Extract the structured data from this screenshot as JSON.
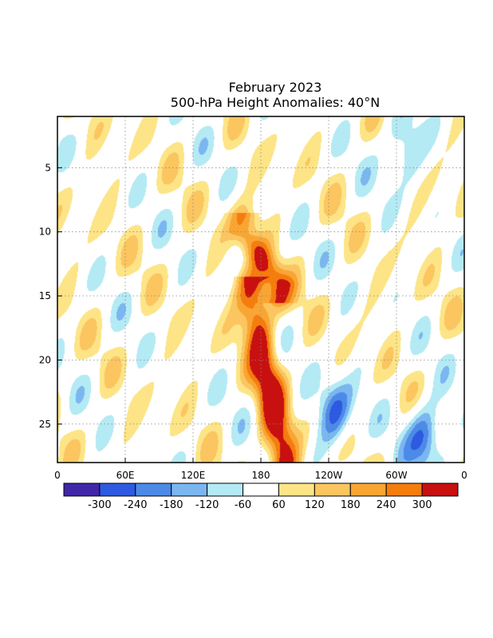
{
  "chart_data": {
    "type": "heatmap",
    "title": "February 2023",
    "subtitle": "500-hPa Height Anomalies: 40°N",
    "xlabel": "",
    "ylabel": "",
    "x_ticks": [
      "0",
      "60E",
      "120E",
      "180",
      "120W",
      "60W",
      "0"
    ],
    "x_tick_lon_east": [
      0,
      60,
      120,
      180,
      240,
      300,
      360
    ],
    "y_ticks": [
      "5",
      "10",
      "15",
      "20",
      "25"
    ],
    "y_tick_values": [
      5,
      10,
      15,
      20,
      25
    ],
    "xlim": [
      0,
      360
    ],
    "ylim": [
      1,
      28
    ],
    "y_axis_direction": "down",
    "grid": true,
    "colorbar": {
      "labels": [
        "-300",
        "-240",
        "-180",
        "-120",
        "-60",
        "60",
        "120",
        "180",
        "240",
        "300"
      ],
      "boundaries": [
        -300,
        -240,
        -180,
        -120,
        -60,
        60,
        120,
        180,
        240,
        300
      ],
      "colors": [
        "#4027a8",
        "#2d5ae0",
        "#4c8ae8",
        "#7ab6f0",
        "#b4eaf4",
        "#ffffff",
        "#fde486",
        "#fbc560",
        "#f9a534",
        "#f47d0e",
        "#c81010"
      ],
      "placement": "bottom"
    },
    "features": [
      {
        "name": "ridge-core",
        "type": "max",
        "value": 330,
        "lon_start": 172,
        "lon_end": 200,
        "day_start": 15,
        "day_end": 28
      },
      {
        "name": "ridge-upper",
        "type": "max",
        "value": 230,
        "lon_start": 165,
        "lon_end": 195,
        "day_start": 10,
        "day_end": 14
      },
      {
        "name": "trough-east-pacific",
        "type": "min",
        "value": -260,
        "lon": 245,
        "day": 24
      },
      {
        "name": "trough-atlantic",
        "type": "min",
        "value": -290,
        "lon": 325,
        "day": 26
      },
      {
        "name": "trough-north-atlantic",
        "type": "min",
        "value": -200,
        "lon": 305,
        "day": 3.5
      }
    ]
  }
}
